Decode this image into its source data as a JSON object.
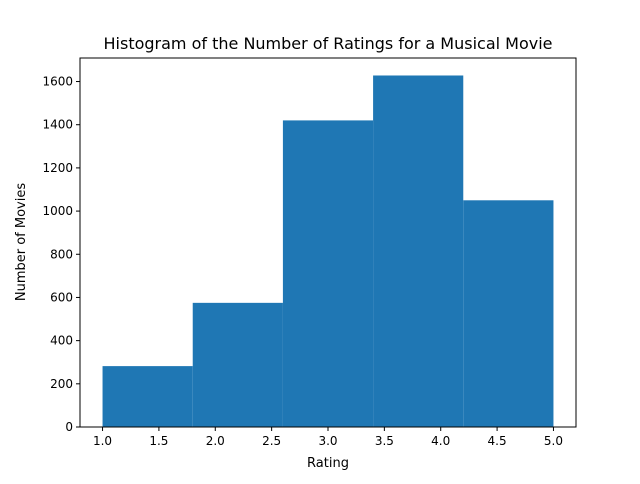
{
  "chart_data": {
    "type": "bar",
    "title": "Histogram of the Number of Ratings for a Musical Movie",
    "xlabel": "Rating",
    "ylabel": "Number of Movies",
    "bins": [
      {
        "start": 1.0,
        "end": 1.8,
        "value": 282
      },
      {
        "start": 1.8,
        "end": 2.6,
        "value": 575
      },
      {
        "start": 2.6,
        "end": 3.4,
        "value": 1420
      },
      {
        "start": 3.4,
        "end": 4.2,
        "value": 1628
      },
      {
        "start": 4.2,
        "end": 5.0,
        "value": 1050
      }
    ],
    "xlim": [
      0.8,
      5.2
    ],
    "ylim": [
      0,
      1709
    ],
    "xticks": [
      1.0,
      1.5,
      2.0,
      2.5,
      3.0,
      3.5,
      4.0,
      4.5,
      5.0
    ],
    "xtick_labels": [
      "1.0",
      "1.5",
      "2.0",
      "2.5",
      "3.0",
      "3.5",
      "4.0",
      "4.5",
      "5.0"
    ],
    "yticks": [
      0,
      200,
      400,
      600,
      800,
      1000,
      1200,
      1400,
      1600
    ],
    "ytick_labels": [
      "0",
      "200",
      "400",
      "600",
      "800",
      "1000",
      "1200",
      "1400",
      "1600"
    ],
    "bar_color": "#1f77b4",
    "grid": false,
    "legend": false
  }
}
